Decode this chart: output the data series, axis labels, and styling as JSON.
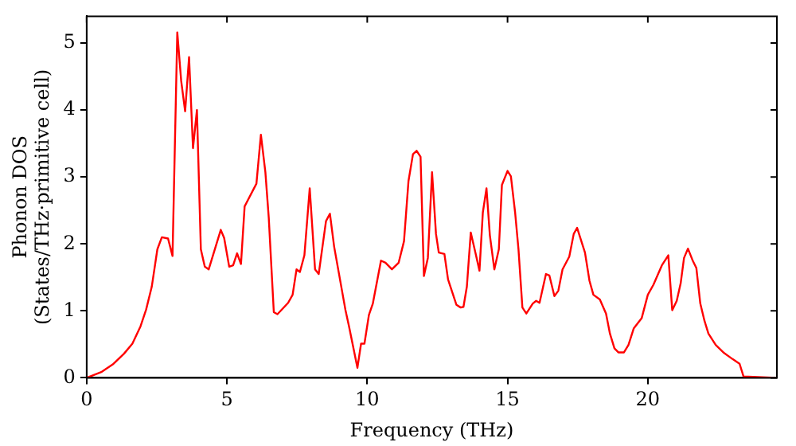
{
  "chart_data": {
    "type": "line",
    "xlabel": "Frequency (THz)",
    "ylabel": "Phonon DOS\n(States/THz·primitive cell)",
    "xlim": [
      0,
      24.6
    ],
    "ylim": [
      0,
      5.4
    ],
    "xticks": [
      0,
      5,
      10,
      15,
      20
    ],
    "yticks": [
      0,
      1,
      2,
      3,
      4,
      5
    ],
    "grid": false,
    "legend": false,
    "marker": "none",
    "line_style": "solid",
    "series": [
      {
        "color": "#ff0000",
        "x": [
          0,
          0.54,
          0.93,
          1.33,
          1.63,
          1.92,
          2.12,
          2.32,
          2.52,
          2.68,
          2.9,
          3.06,
          3.23,
          3.37,
          3.51,
          3.65,
          3.79,
          3.93,
          4.07,
          4.21,
          4.35,
          4.78,
          4.9,
          5.08,
          5.22,
          5.36,
          5.5,
          5.63,
          6.05,
          6.21,
          6.37,
          6.49,
          6.67,
          6.8,
          7.18,
          7.34,
          7.48,
          7.6,
          7.76,
          7.95,
          8.14,
          8.27,
          8.53,
          8.67,
          8.82,
          9.22,
          9.35,
          9.65,
          9.78,
          9.9,
          10.06,
          10.2,
          10.49,
          10.65,
          10.88,
          11.12,
          11.31,
          11.47,
          11.63,
          11.76,
          11.9,
          12.02,
          12.16,
          12.31,
          12.45,
          12.55,
          12.75,
          12.88,
          13.18,
          13.33,
          13.43,
          13.55,
          13.69,
          13.86,
          14.0,
          14.12,
          14.25,
          14.37,
          14.53,
          14.69,
          14.8,
          15.0,
          15.12,
          15.27,
          15.39,
          15.53,
          15.67,
          15.9,
          16.02,
          16.14,
          16.37,
          16.49,
          16.67,
          16.81,
          16.96,
          17.2,
          17.36,
          17.48,
          17.76,
          17.92,
          18.06,
          18.29,
          18.51,
          18.65,
          18.81,
          18.95,
          19.15,
          19.31,
          19.5,
          19.78,
          20.0,
          20.2,
          20.5,
          20.73,
          20.87,
          21.03,
          21.17,
          21.29,
          21.43,
          21.59,
          21.73,
          21.87,
          22.02,
          22.16,
          22.42,
          22.72,
          23.02,
          23.27,
          23.41,
          24.6
        ],
        "values": [
          0,
          0.09,
          0.2,
          0.36,
          0.51,
          0.77,
          1.02,
          1.36,
          1.92,
          2.1,
          2.08,
          1.82,
          5.16,
          4.43,
          3.98,
          4.79,
          3.43,
          4.0,
          1.92,
          1.66,
          1.62,
          2.21,
          2.09,
          1.66,
          1.68,
          1.86,
          1.7,
          2.56,
          2.9,
          3.63,
          3.07,
          2.39,
          0.98,
          0.95,
          1.12,
          1.24,
          1.62,
          1.58,
          1.83,
          2.83,
          1.62,
          1.55,
          2.34,
          2.45,
          1.96,
          1.02,
          0.77,
          0.15,
          0.51,
          0.51,
          0.94,
          1.11,
          1.75,
          1.72,
          1.62,
          1.72,
          2.04,
          2.94,
          3.34,
          3.39,
          3.3,
          1.52,
          1.79,
          3.07,
          2.15,
          1.87,
          1.85,
          1.47,
          1.09,
          1.05,
          1.06,
          1.36,
          2.17,
          1.86,
          1.6,
          2.47,
          2.83,
          2.13,
          1.62,
          1.92,
          2.88,
          3.09,
          3.01,
          2.47,
          1.92,
          1.05,
          0.96,
          1.11,
          1.15,
          1.12,
          1.55,
          1.53,
          1.22,
          1.3,
          1.62,
          1.81,
          2.15,
          2.24,
          1.87,
          1.45,
          1.24,
          1.17,
          0.96,
          0.66,
          0.44,
          0.38,
          0.38,
          0.49,
          0.74,
          0.89,
          1.24,
          1.39,
          1.68,
          1.83,
          1.01,
          1.15,
          1.41,
          1.79,
          1.93,
          1.76,
          1.64,
          1.11,
          0.85,
          0.66,
          0.49,
          0.37,
          0.28,
          0.21,
          0.02,
          0
        ]
      }
    ]
  }
}
